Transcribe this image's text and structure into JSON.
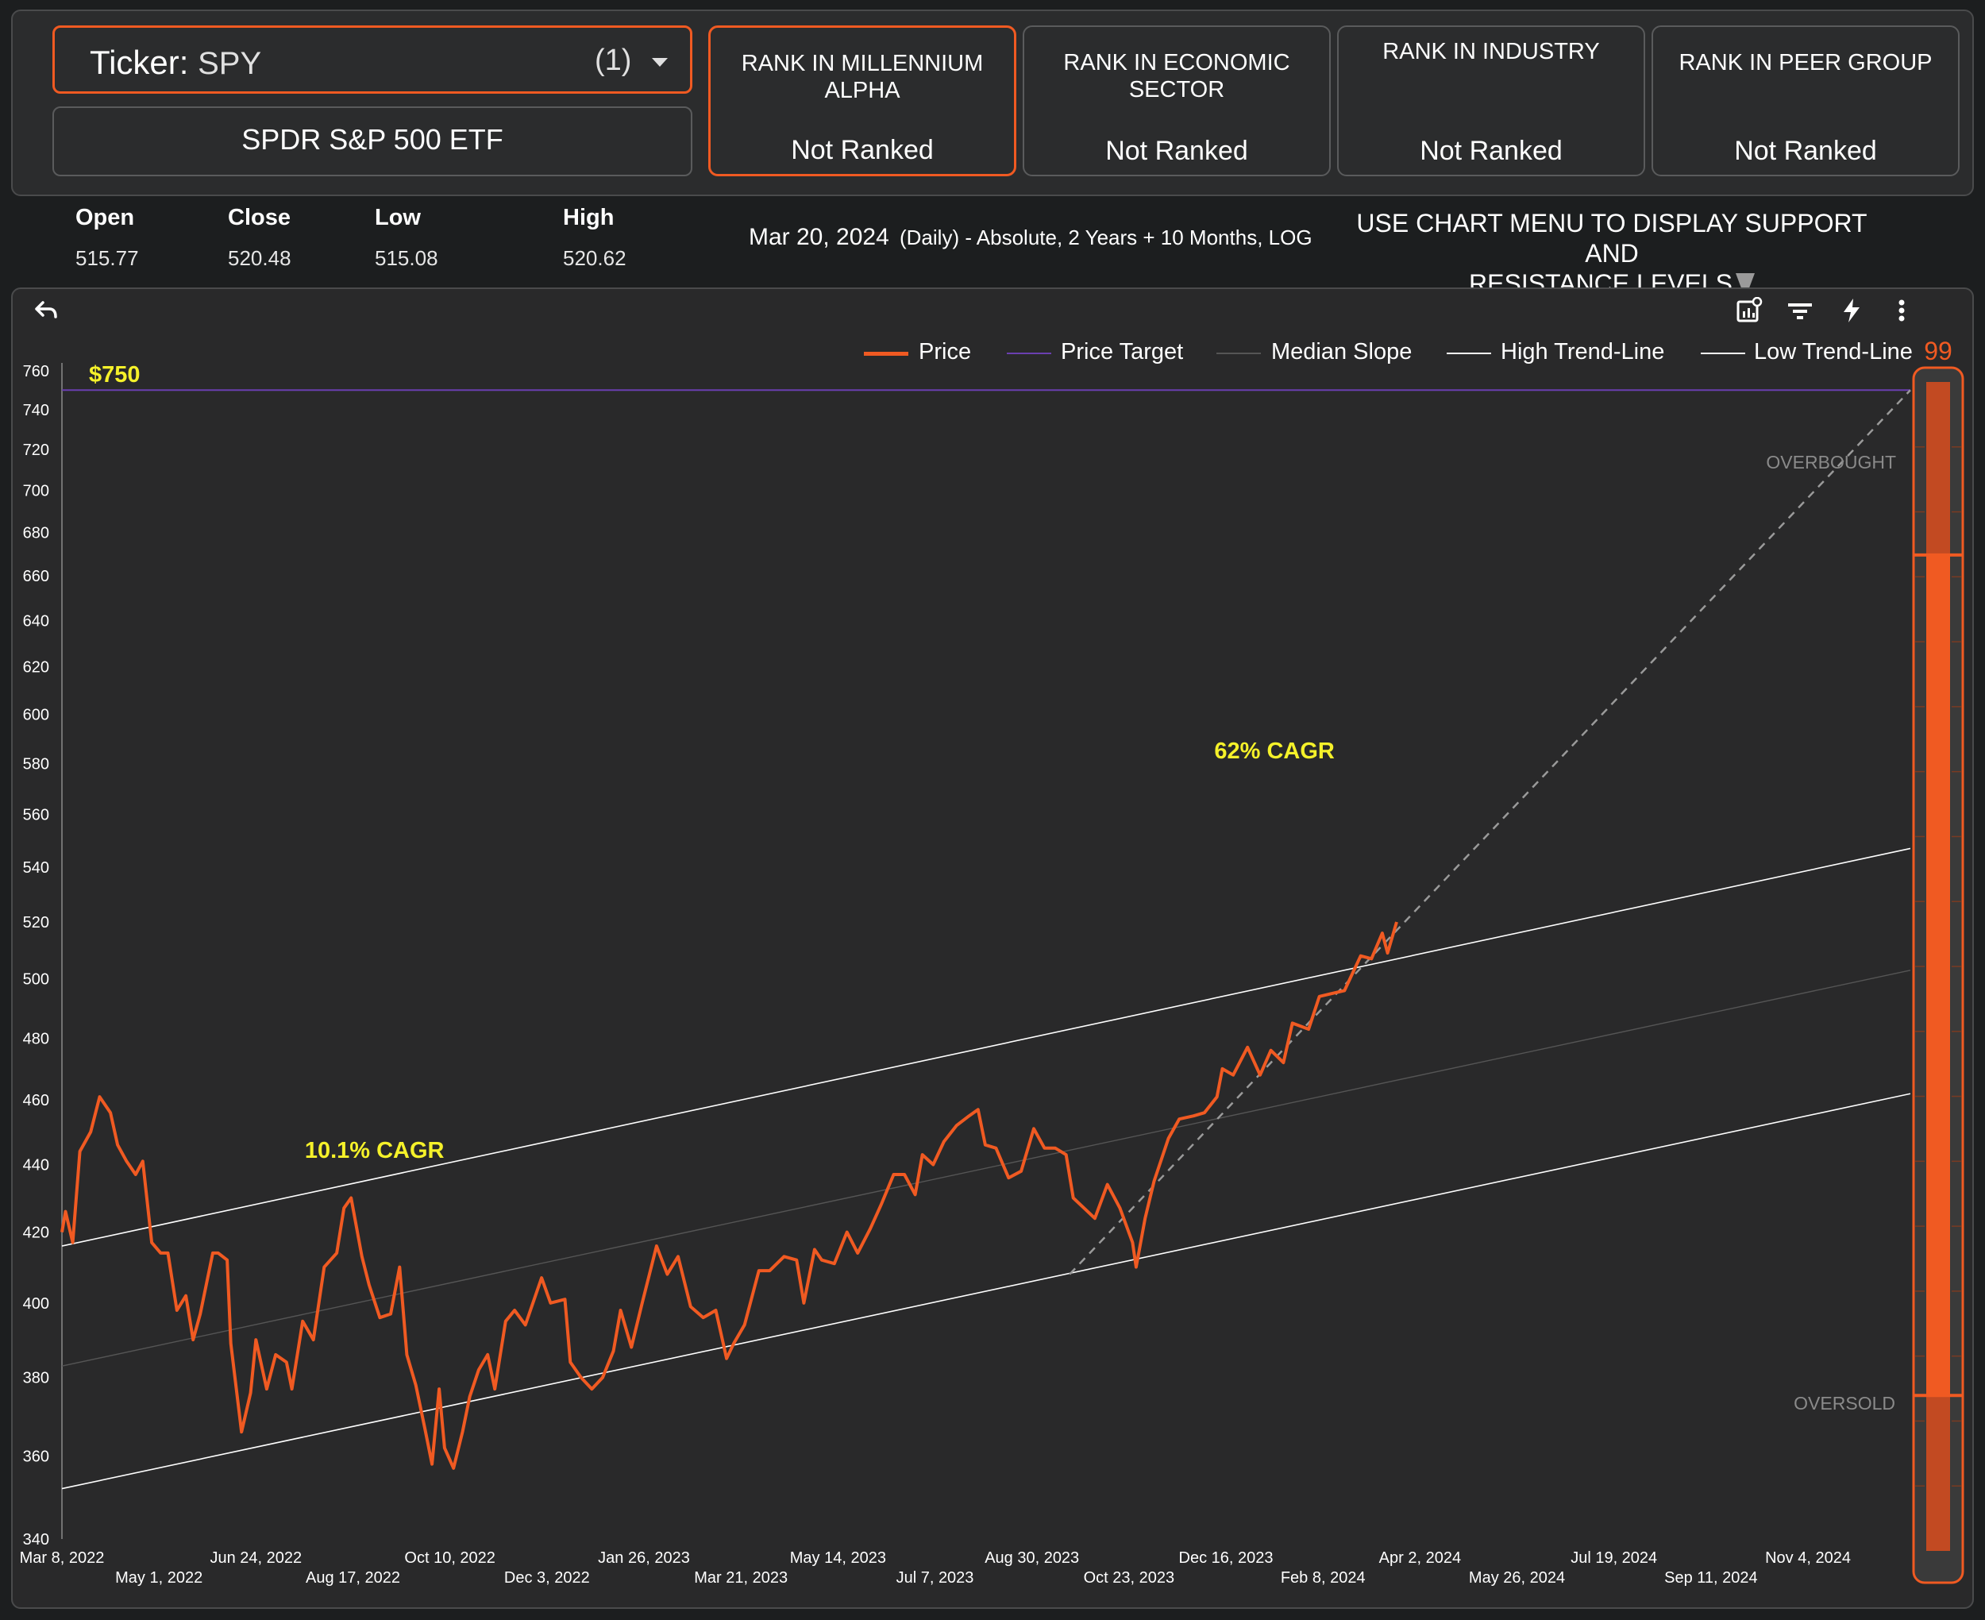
{
  "header": {
    "ticker_label": "Ticker:",
    "ticker_value": "SPY",
    "ticker_count": "(1)",
    "fund_name": "SPDR S&P 500 ETF"
  },
  "ranks": [
    {
      "title": "RANK IN MILLENNIUM ALPHA",
      "value": "Not Ranked"
    },
    {
      "title": "RANK IN ECONOMIC SECTOR",
      "value": "Not Ranked"
    },
    {
      "title": "RANK IN INDUSTRY",
      "value": "Not Ranked"
    },
    {
      "title": "RANK IN PEER GROUP",
      "value": "Not Ranked"
    }
  ],
  "stats": {
    "open_label": "Open",
    "open": "515.77",
    "close_label": "Close",
    "close": "520.48",
    "low_label": "Low",
    "low": "515.08",
    "high_label": "High",
    "high": "520.62"
  },
  "chart_info": {
    "date": "Mar 20, 2024",
    "description": "(Daily) - Absolute, 2 Years + 10 Months, LOG",
    "menu_note_line1": "USE CHART MENU TO DISPLAY SUPPORT AND",
    "menu_note_line2": "RESISTANCE LEVELS"
  },
  "toolbar": {
    "undo_icon": "undo-icon",
    "chart_settings_icon": "chart-settings-icon",
    "filter_icon": "filter-icon",
    "lightning_icon": "lightning-icon",
    "more_icon": "more-vertical-icon"
  },
  "chart_data": {
    "type": "line",
    "y_scale": "log",
    "ylim": [
      340,
      760
    ],
    "xlim": [
      "2022-03-08",
      "2024-12-31"
    ],
    "y_ticks": [
      340,
      360,
      380,
      400,
      420,
      440,
      460,
      480,
      500,
      520,
      540,
      560,
      580,
      600,
      620,
      640,
      660,
      680,
      700,
      720,
      740,
      760
    ],
    "x_ticks": [
      {
        "date": "2022-03-08",
        "label": "Mar 8, 2022"
      },
      {
        "date": "2022-05-01",
        "label": "May 1, 2022"
      },
      {
        "date": "2022-06-24",
        "label": "Jun 24, 2022"
      },
      {
        "date": "2022-08-17",
        "label": "Aug 17, 2022"
      },
      {
        "date": "2022-10-10",
        "label": "Oct 10, 2022"
      },
      {
        "date": "2022-12-03",
        "label": "Dec 3, 2022"
      },
      {
        "date": "2023-01-26",
        "label": "Jan 26, 2023"
      },
      {
        "date": "2023-03-21",
        "label": "Mar 21, 2023"
      },
      {
        "date": "2023-05-14",
        "label": "May 14, 2023"
      },
      {
        "date": "2023-07-07",
        "label": "Jul 7, 2023"
      },
      {
        "date": "2023-08-30",
        "label": "Aug 30, 2023"
      },
      {
        "date": "2023-10-23",
        "label": "Oct 23, 2023"
      },
      {
        "date": "2023-12-16",
        "label": "Dec 16, 2023"
      },
      {
        "date": "2024-02-08",
        "label": "Feb 8, 2024"
      },
      {
        "date": "2024-04-02",
        "label": "Apr 2, 2024"
      },
      {
        "date": "2024-05-26",
        "label": "May 26, 2024"
      },
      {
        "date": "2024-07-19",
        "label": "Jul 19, 2024"
      },
      {
        "date": "2024-09-11",
        "label": "Sep 11, 2024"
      },
      {
        "date": "2024-11-04",
        "label": "Nov 4, 2024"
      }
    ],
    "legend": [
      {
        "name": "Price",
        "color": "#f05a22"
      },
      {
        "name": "Price Target",
        "color": "#6a3fb0"
      },
      {
        "name": "Median Slope",
        "color": "#555555"
      },
      {
        "name": "High Trend-Line",
        "color": "#ffffff"
      },
      {
        "name": "Low Trend-Line",
        "color": "#ffffff"
      }
    ],
    "series": [
      {
        "name": "Price",
        "color": "#f05a22",
        "points": [
          [
            "2022-03-08",
            420
          ],
          [
            "2022-03-10",
            426
          ],
          [
            "2022-03-14",
            417
          ],
          [
            "2022-03-18",
            444
          ],
          [
            "2022-03-24",
            450
          ],
          [
            "2022-03-29",
            461
          ],
          [
            "2022-04-04",
            456
          ],
          [
            "2022-04-08",
            446
          ],
          [
            "2022-04-13",
            441
          ],
          [
            "2022-04-18",
            437
          ],
          [
            "2022-04-22",
            441
          ],
          [
            "2022-04-27",
            417
          ],
          [
            "2022-05-02",
            414
          ],
          [
            "2022-05-06",
            414
          ],
          [
            "2022-05-11",
            398
          ],
          [
            "2022-05-16",
            402
          ],
          [
            "2022-05-20",
            390
          ],
          [
            "2022-05-24",
            397
          ],
          [
            "2022-05-31",
            414
          ],
          [
            "2022-06-03",
            414
          ],
          [
            "2022-06-08",
            412
          ],
          [
            "2022-06-10",
            389
          ],
          [
            "2022-06-16",
            366
          ],
          [
            "2022-06-21",
            376
          ],
          [
            "2022-06-24",
            390
          ],
          [
            "2022-06-30",
            377
          ],
          [
            "2022-07-05",
            386
          ],
          [
            "2022-07-11",
            384
          ],
          [
            "2022-07-14",
            377
          ],
          [
            "2022-07-20",
            395
          ],
          [
            "2022-07-26",
            390
          ],
          [
            "2022-08-01",
            410
          ],
          [
            "2022-08-08",
            414
          ],
          [
            "2022-08-12",
            427
          ],
          [
            "2022-08-16",
            430
          ],
          [
            "2022-08-22",
            413
          ],
          [
            "2022-08-26",
            405
          ],
          [
            "2022-09-01",
            396
          ],
          [
            "2022-09-07",
            397
          ],
          [
            "2022-09-12",
            410
          ],
          [
            "2022-09-16",
            386
          ],
          [
            "2022-09-21",
            378
          ],
          [
            "2022-09-26",
            367
          ],
          [
            "2022-09-30",
            358
          ],
          [
            "2022-10-04",
            377
          ],
          [
            "2022-10-07",
            362
          ],
          [
            "2022-10-12",
            357
          ],
          [
            "2022-10-17",
            366
          ],
          [
            "2022-10-21",
            375
          ],
          [
            "2022-10-26",
            382
          ],
          [
            "2022-10-31",
            386
          ],
          [
            "2022-11-04",
            377
          ],
          [
            "2022-11-10",
            395
          ],
          [
            "2022-11-15",
            398
          ],
          [
            "2022-11-21",
            394
          ],
          [
            "2022-11-30",
            407
          ],
          [
            "2022-12-05",
            400
          ],
          [
            "2022-12-13",
            401
          ],
          [
            "2022-12-16",
            384
          ],
          [
            "2022-12-22",
            380
          ],
          [
            "2022-12-28",
            377
          ],
          [
            "2023-01-03",
            380
          ],
          [
            "2023-01-09",
            387
          ],
          [
            "2023-01-13",
            398
          ],
          [
            "2023-01-19",
            388
          ],
          [
            "2023-01-25",
            400
          ],
          [
            "2023-02-02",
            416
          ],
          [
            "2023-02-08",
            408
          ],
          [
            "2023-02-14",
            413
          ],
          [
            "2023-02-21",
            399
          ],
          [
            "2023-02-28",
            396
          ],
          [
            "2023-03-07",
            398
          ],
          [
            "2023-03-13",
            385
          ],
          [
            "2023-03-17",
            389
          ],
          [
            "2023-03-23",
            394
          ],
          [
            "2023-03-31",
            409
          ],
          [
            "2023-04-06",
            409
          ],
          [
            "2023-04-14",
            413
          ],
          [
            "2023-04-21",
            412
          ],
          [
            "2023-04-25",
            400
          ],
          [
            "2023-05-01",
            415
          ],
          [
            "2023-05-05",
            412
          ],
          [
            "2023-05-12",
            411
          ],
          [
            "2023-05-19",
            420
          ],
          [
            "2023-05-25",
            414
          ],
          [
            "2023-06-01",
            421
          ],
          [
            "2023-06-07",
            428
          ],
          [
            "2023-06-14",
            437
          ],
          [
            "2023-06-20",
            437
          ],
          [
            "2023-06-26",
            431
          ],
          [
            "2023-06-30",
            443
          ],
          [
            "2023-07-06",
            440
          ],
          [
            "2023-07-12",
            447
          ],
          [
            "2023-07-19",
            452
          ],
          [
            "2023-07-26",
            455
          ],
          [
            "2023-07-31",
            457
          ],
          [
            "2023-08-04",
            446
          ],
          [
            "2023-08-10",
            445
          ],
          [
            "2023-08-17",
            436
          ],
          [
            "2023-08-24",
            438
          ],
          [
            "2023-08-31",
            451
          ],
          [
            "2023-09-06",
            445
          ],
          [
            "2023-09-12",
            445
          ],
          [
            "2023-09-18",
            443
          ],
          [
            "2023-09-22",
            430
          ],
          [
            "2023-09-28",
            427
          ],
          [
            "2023-10-04",
            424
          ],
          [
            "2023-10-11",
            434
          ],
          [
            "2023-10-18",
            427
          ],
          [
            "2023-10-25",
            417
          ],
          [
            "2023-10-27",
            410
          ],
          [
            "2023-11-01",
            424
          ],
          [
            "2023-11-06",
            435
          ],
          [
            "2023-11-14",
            448
          ],
          [
            "2023-11-20",
            454
          ],
          [
            "2023-11-28",
            455
          ],
          [
            "2023-12-04",
            456
          ],
          [
            "2023-12-11",
            461
          ],
          [
            "2023-12-14",
            470
          ],
          [
            "2023-12-20",
            468
          ],
          [
            "2023-12-28",
            477
          ],
          [
            "2024-01-04",
            468
          ],
          [
            "2024-01-10",
            476
          ],
          [
            "2024-01-17",
            472
          ],
          [
            "2024-01-22",
            485
          ],
          [
            "2024-01-31",
            483
          ],
          [
            "2024-02-06",
            494
          ],
          [
            "2024-02-13",
            495
          ],
          [
            "2024-02-20",
            496
          ],
          [
            "2024-02-29",
            508
          ],
          [
            "2024-03-06",
            507
          ],
          [
            "2024-03-12",
            516
          ],
          [
            "2024-03-15",
            509
          ],
          [
            "2024-03-20",
            520
          ]
        ]
      },
      {
        "name": "Price Target",
        "color": "#6a3fb0",
        "value": 750,
        "label": "$750"
      },
      {
        "name": "High Trend-Line",
        "color": "#ffffff",
        "points": [
          [
            "2022-03-08",
            416
          ],
          [
            "2024-12-31",
            547
          ]
        ]
      },
      {
        "name": "Median Slope",
        "color": "#555555",
        "points": [
          [
            "2022-03-08",
            383
          ],
          [
            "2024-12-31",
            503
          ]
        ]
      },
      {
        "name": "Low Trend-Line",
        "color": "#ffffff",
        "points": [
          [
            "2022-03-08",
            352
          ],
          [
            "2024-12-31",
            462
          ]
        ]
      },
      {
        "name": "Projection",
        "color": "#9a9a9a",
        "points": [
          [
            "2023-09-20",
            408
          ],
          [
            "2024-12-31",
            750
          ]
        ]
      }
    ],
    "annotations": [
      {
        "text": "10.1% CAGR",
        "date": "2022-08-29",
        "value": 442
      },
      {
        "text": "62% CAGR",
        "date": "2024-01-12",
        "value": 582
      }
    ],
    "gauge": {
      "value": 99,
      "overbought_label": "OVERBOUGHT",
      "oversold_label": "OVERSOLD",
      "overbought_level": 0.852,
      "oversold_level": 0.133
    }
  }
}
